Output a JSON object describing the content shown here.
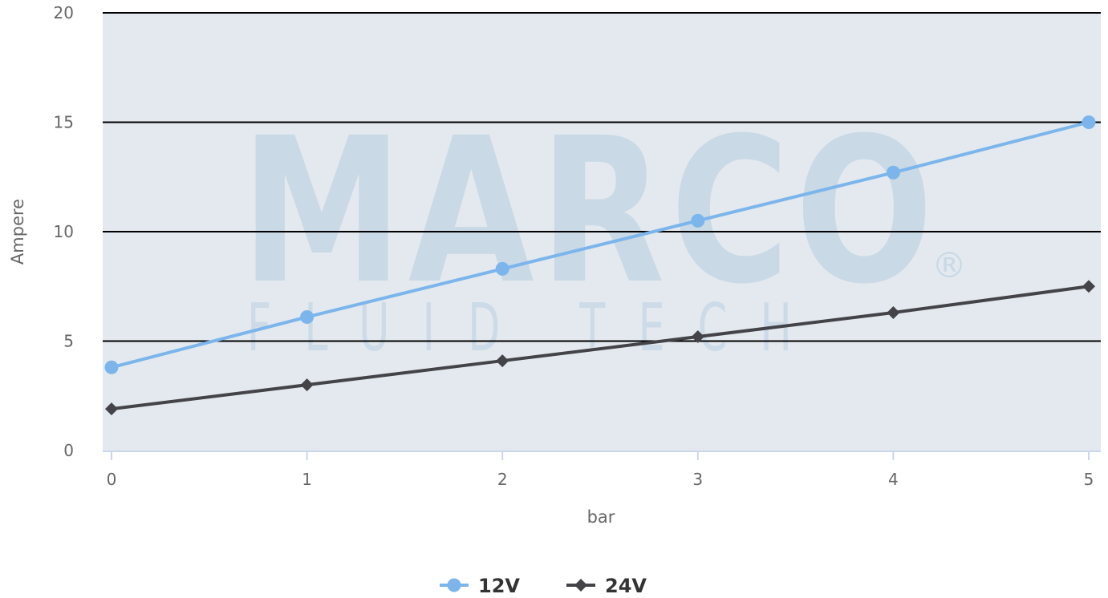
{
  "watermark": {
    "brand": "MARCO",
    "tagline": "FLUID TECH",
    "registered": "®"
  },
  "chart_data": {
    "type": "line",
    "x": [
      0,
      1,
      2,
      3,
      4,
      5
    ],
    "xlabel": "bar",
    "ylabel": "Ampere",
    "xlim": [
      0,
      5
    ],
    "ylim": [
      0,
      20
    ],
    "x_ticks": [
      "0",
      "1",
      "2",
      "3",
      "4",
      "5"
    ],
    "y_ticks": [
      "0",
      "5",
      "10",
      "15",
      "20"
    ],
    "grid": true,
    "legend_position": "bottom-center",
    "plot_background": "#e3e9ef",
    "grid_color": "#000000",
    "series": [
      {
        "name": "12V",
        "marker": "circle",
        "color": "#7cb5ec",
        "values": [
          3.8,
          6.1,
          8.3,
          10.5,
          12.7,
          15.0
        ]
      },
      {
        "name": "24V",
        "marker": "diamond",
        "color": "#434348",
        "values": [
          1.9,
          3.0,
          4.1,
          5.2,
          6.3,
          7.5
        ]
      }
    ]
  }
}
